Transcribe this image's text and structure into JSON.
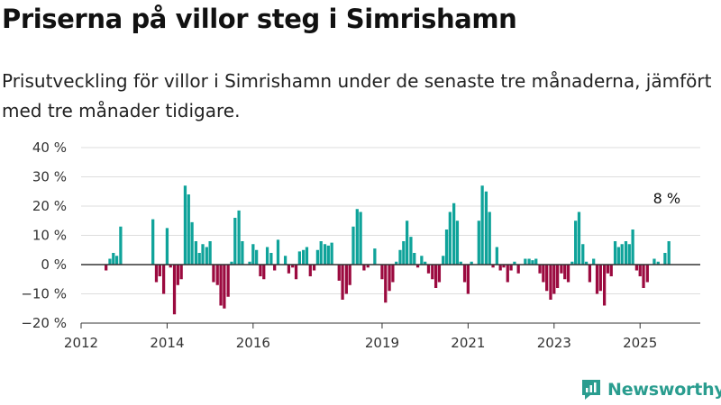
{
  "title": "Priserna på villor steg i Simrishamn",
  "subtitle": "Prisutveckling för villor i Simrishamn under de senaste tre månaderna, jämfört med tre månader tidigare.",
  "brand": "Newsworthy",
  "colors": {
    "positive": "#0fa39a",
    "negative": "#9b0a3f",
    "axis": "#333333",
    "grid": "#dddddd",
    "brand": "#2a9d8f"
  },
  "chart_data": {
    "type": "bar",
    "title": "Priserna på villor steg i Simrishamn",
    "ylim": [
      -20,
      40
    ],
    "yticks": [
      -20,
      -10,
      0,
      10,
      20,
      30,
      40
    ],
    "ytick_labels": [
      "−20 %",
      "−10 %",
      "0 %",
      "10 %",
      "20 %",
      "30 %",
      "40 %"
    ],
    "xticks": [
      {
        "x": 2012,
        "label": "2012"
      },
      {
        "x": 2014,
        "label": "2014"
      },
      {
        "x": 2016,
        "label": "2016"
      },
      {
        "x": 2019,
        "label": "2019"
      },
      {
        "x": 2021,
        "label": "2021"
      },
      {
        "x": 2023,
        "label": "2023"
      },
      {
        "x": 2025,
        "label": "2025"
      }
    ],
    "xlim": [
      2012,
      2026.4
    ],
    "grid": true,
    "annotation": {
      "text": "8 %",
      "x": 2025.58,
      "y": 8
    },
    "points": [
      [
        2012.58,
        -2
      ],
      [
        2012.67,
        2
      ],
      [
        2012.75,
        4
      ],
      [
        2012.83,
        3
      ],
      [
        2012.92,
        13
      ],
      [
        2013.67,
        15.5
      ],
      [
        2013.75,
        -6
      ],
      [
        2013.83,
        -4
      ],
      [
        2013.92,
        -10
      ],
      [
        2014.0,
        12.5
      ],
      [
        2014.08,
        -1
      ],
      [
        2014.17,
        -17
      ],
      [
        2014.25,
        -7
      ],
      [
        2014.33,
        -5
      ],
      [
        2014.42,
        27
      ],
      [
        2014.5,
        24
      ],
      [
        2014.58,
        14.5
      ],
      [
        2014.67,
        8
      ],
      [
        2014.75,
        4
      ],
      [
        2014.83,
        7
      ],
      [
        2014.92,
        6
      ],
      [
        2015.0,
        8
      ],
      [
        2015.08,
        -6
      ],
      [
        2015.17,
        -7
      ],
      [
        2015.25,
        -14
      ],
      [
        2015.33,
        -15
      ],
      [
        2015.42,
        -11
      ],
      [
        2015.5,
        1
      ],
      [
        2015.58,
        16
      ],
      [
        2015.67,
        18.5
      ],
      [
        2015.75,
        8
      ],
      [
        2015.92,
        1
      ],
      [
        2016.0,
        7
      ],
      [
        2016.08,
        5
      ],
      [
        2016.17,
        -4
      ],
      [
        2016.25,
        -5
      ],
      [
        2016.33,
        6
      ],
      [
        2016.42,
        4
      ],
      [
        2016.5,
        -2
      ],
      [
        2016.58,
        8.5
      ],
      [
        2016.75,
        3
      ],
      [
        2016.83,
        -3
      ],
      [
        2016.92,
        -1
      ],
      [
        2017.0,
        -5
      ],
      [
        2017.08,
        4.5
      ],
      [
        2017.17,
        5
      ],
      [
        2017.25,
        6
      ],
      [
        2017.33,
        -4
      ],
      [
        2017.42,
        -2
      ],
      [
        2017.5,
        5
      ],
      [
        2017.58,
        8
      ],
      [
        2017.67,
        7
      ],
      [
        2017.75,
        6.5
      ],
      [
        2017.83,
        7.5
      ],
      [
        2018.0,
        -5.5
      ],
      [
        2018.08,
        -12
      ],
      [
        2018.17,
        -10
      ],
      [
        2018.25,
        -7
      ],
      [
        2018.33,
        13
      ],
      [
        2018.42,
        19
      ],
      [
        2018.5,
        18
      ],
      [
        2018.58,
        -2
      ],
      [
        2018.67,
        -1
      ],
      [
        2018.83,
        5.5
      ],
      [
        2019.0,
        -5
      ],
      [
        2019.08,
        -13
      ],
      [
        2019.17,
        -9
      ],
      [
        2019.25,
        -6
      ],
      [
        2019.33,
        1
      ],
      [
        2019.42,
        5
      ],
      [
        2019.5,
        8
      ],
      [
        2019.58,
        15
      ],
      [
        2019.67,
        9.5
      ],
      [
        2019.75,
        4
      ],
      [
        2019.83,
        -1
      ],
      [
        2019.92,
        3
      ],
      [
        2020.0,
        1
      ],
      [
        2020.08,
        -3
      ],
      [
        2020.17,
        -5
      ],
      [
        2020.25,
        -8
      ],
      [
        2020.33,
        -6
      ],
      [
        2020.42,
        3
      ],
      [
        2020.5,
        12
      ],
      [
        2020.58,
        18
      ],
      [
        2020.67,
        21
      ],
      [
        2020.75,
        15
      ],
      [
        2020.83,
        1
      ],
      [
        2020.92,
        -6
      ],
      [
        2021.0,
        -10
      ],
      [
        2021.08,
        1
      ],
      [
        2021.25,
        15
      ],
      [
        2021.33,
        27
      ],
      [
        2021.42,
        25
      ],
      [
        2021.5,
        18
      ],
      [
        2021.58,
        -1
      ],
      [
        2021.67,
        6
      ],
      [
        2021.75,
        -2
      ],
      [
        2021.83,
        -1
      ],
      [
        2021.92,
        -6
      ],
      [
        2022.0,
        -2
      ],
      [
        2022.08,
        1
      ],
      [
        2022.17,
        -3
      ],
      [
        2022.33,
        2
      ],
      [
        2022.42,
        2
      ],
      [
        2022.5,
        1.5
      ],
      [
        2022.58,
        2
      ],
      [
        2022.67,
        -3
      ],
      [
        2022.75,
        -6
      ],
      [
        2022.83,
        -9
      ],
      [
        2022.92,
        -12
      ],
      [
        2023.0,
        -10
      ],
      [
        2023.08,
        -8
      ],
      [
        2023.17,
        -3
      ],
      [
        2023.25,
        -5
      ],
      [
        2023.33,
        -6
      ],
      [
        2023.42,
        1
      ],
      [
        2023.5,
        15
      ],
      [
        2023.58,
        18
      ],
      [
        2023.67,
        7
      ],
      [
        2023.75,
        1
      ],
      [
        2023.83,
        -6
      ],
      [
        2023.92,
        2
      ],
      [
        2024.0,
        -10
      ],
      [
        2024.08,
        -9
      ],
      [
        2024.17,
        -14
      ],
      [
        2024.25,
        -3
      ],
      [
        2024.33,
        -4
      ],
      [
        2024.42,
        8
      ],
      [
        2024.5,
        6
      ],
      [
        2024.58,
        7
      ],
      [
        2024.67,
        8
      ],
      [
        2024.75,
        7
      ],
      [
        2024.83,
        12
      ],
      [
        2024.92,
        -2
      ],
      [
        2025.0,
        -4
      ],
      [
        2025.08,
        -8
      ],
      [
        2025.17,
        -6
      ],
      [
        2025.33,
        2
      ],
      [
        2025.42,
        1
      ],
      [
        2025.58,
        4
      ],
      [
        2025.67,
        8
      ]
    ]
  }
}
